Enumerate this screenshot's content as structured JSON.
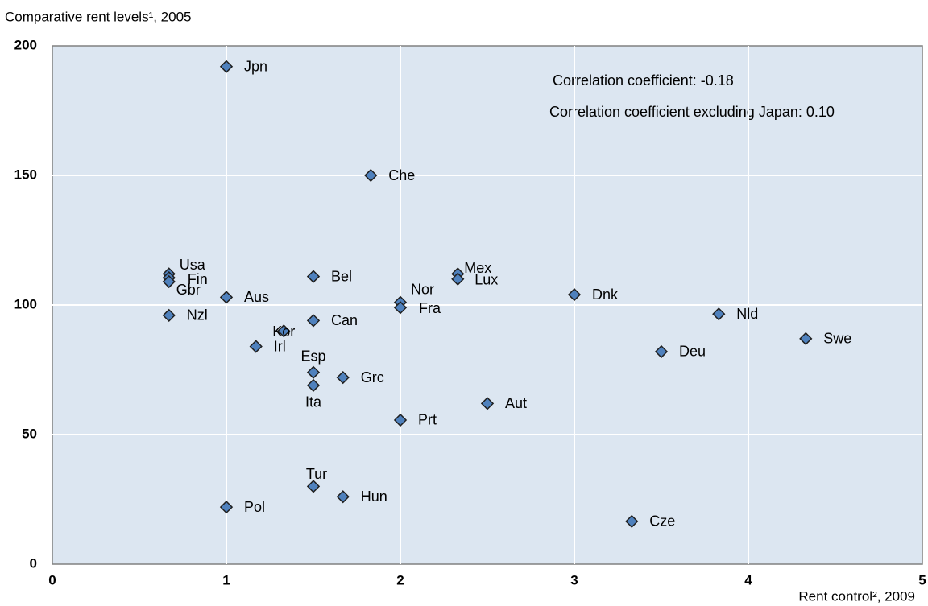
{
  "chart_data": {
    "type": "scatter",
    "y_label": "Comparative rent levels¹, 2005",
    "x_label": "Rent control², 2009",
    "annotations": [
      "Correlation coefficient: -0.18",
      "Correlation coefficient excluding Japan: 0.10"
    ],
    "labels": [
      "Jpn",
      "Che",
      "Usa",
      "Fin",
      "Gbr",
      "Aus",
      "Nzl",
      "Bel",
      "Can",
      "Kor",
      "Irl",
      "Esp",
      "Grc",
      "Ita",
      "Nor",
      "Fra",
      "Prt",
      "Mex",
      "Lux",
      "Aut",
      "Dnk",
      "Deu",
      "Nld",
      "Swe",
      "Cze",
      "Tur",
      "Hun",
      "Pol"
    ],
    "x": [
      1,
      1.83,
      0.67,
      0.67,
      0.67,
      1,
      0.67,
      1.5,
      1.5,
      1.33,
      1.17,
      1.5,
      1.67,
      1.5,
      2,
      2,
      2,
      2.33,
      2.33,
      2.5,
      3,
      3.5,
      3.83,
      4.33,
      3.33,
      1.5,
      1.67,
      1
    ],
    "values": [
      192,
      150,
      112,
      110.5,
      109,
      103,
      96,
      111,
      94,
      90,
      84,
      74,
      72,
      69,
      101,
      99,
      55.6,
      112,
      110,
      62,
      104,
      82,
      96.5,
      87,
      16.5,
      30,
      26,
      22
    ],
    "color": "#4f81bd",
    "xlim": [
      0,
      5
    ],
    "xticks": [
      0,
      1,
      2,
      3,
      4,
      5
    ],
    "ylim": [
      0,
      200
    ],
    "yticks": [
      0,
      50,
      100,
      150,
      200
    ],
    "grid": true
  }
}
